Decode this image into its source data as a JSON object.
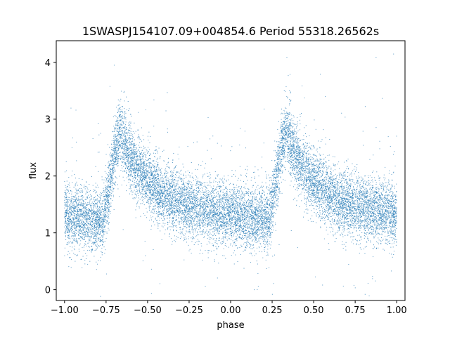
{
  "chart_data": {
    "type": "scatter",
    "title": "1SWASPJ154107.09+004854.6 Period 55318.26562s",
    "xlabel": "phase",
    "ylabel": "flux",
    "xlim": [
      -1.05,
      1.05
    ],
    "ylim": [
      -0.19,
      4.38
    ],
    "x_ticks": [
      -1.0,
      -0.75,
      -0.5,
      -0.25,
      0.0,
      0.25,
      0.5,
      0.75,
      1.0
    ],
    "x_tick_labels": [
      "−1.00",
      "−0.75",
      "−0.50",
      "−0.25",
      "0.00",
      "0.25",
      "0.50",
      "0.75",
      "1.00"
    ],
    "y_ticks": [
      0,
      1,
      2,
      3,
      4
    ],
    "y_tick_labels": [
      "0",
      "1",
      "2",
      "3",
      "4"
    ],
    "grid": false,
    "legend": "none",
    "marker_color": "#1f77b4",
    "series": [
      {
        "trend_x": [
          -1.0,
          -0.9,
          -0.8,
          -0.77,
          -0.75,
          -0.7,
          -0.67,
          -0.6,
          -0.5,
          -0.4,
          -0.3,
          -0.2,
          -0.1,
          0.0,
          0.1,
          0.2,
          0.23,
          0.25,
          0.3,
          0.33,
          0.4,
          0.5,
          0.6,
          0.7,
          0.8,
          0.9,
          1.0
        ],
        "trend_y": [
          1.32,
          1.28,
          1.2,
          1.22,
          1.5,
          2.35,
          2.82,
          2.3,
          1.9,
          1.65,
          1.52,
          1.43,
          1.38,
          1.33,
          1.3,
          1.25,
          1.22,
          1.5,
          2.35,
          2.82,
          2.3,
          1.9,
          1.65,
          1.52,
          1.43,
          1.38,
          1.33
        ],
        "scatter_sigma": 0.28,
        "point_count": 14000
      }
    ]
  }
}
